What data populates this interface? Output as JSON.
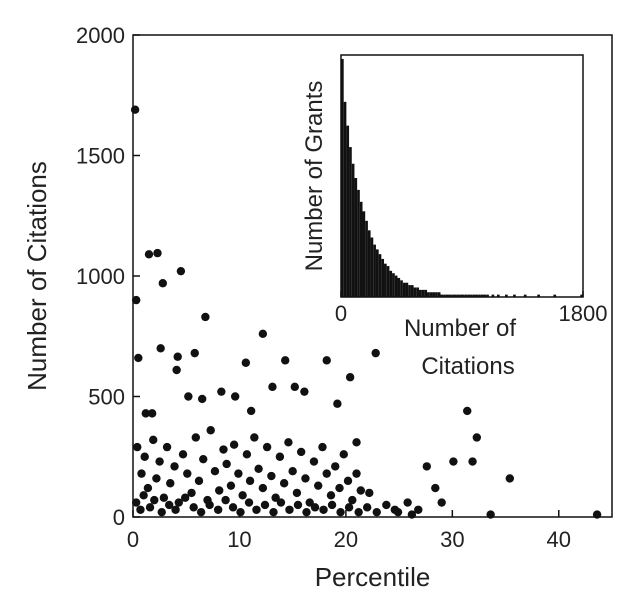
{
  "chart_data": [
    {
      "type": "scatter",
      "xlabel": "Percentile",
      "ylabel": "Number of Citations",
      "xlim": [
        0,
        45
      ],
      "ylim": [
        0,
        2000
      ],
      "x_ticks": [
        {
          "value": 0,
          "label": "0"
        },
        {
          "value": 10,
          "label": "10"
        },
        {
          "value": 20,
          "label": "20"
        },
        {
          "value": 30,
          "label": "30"
        },
        {
          "value": 40,
          "label": "40"
        }
      ],
      "y_ticks": [
        {
          "value": 0,
          "label": "0"
        },
        {
          "value": 500,
          "label": "500"
        },
        {
          "value": 1000,
          "label": "1000"
        },
        {
          "value": 1500,
          "label": "1500"
        },
        {
          "value": 2000,
          "label": "2000"
        }
      ],
      "grid": false,
      "marker_color": "#111111",
      "points": [
        {
          "x": 0.2,
          "y": 1690
        },
        {
          "x": 0.3,
          "y": 900
        },
        {
          "x": 0.5,
          "y": 660
        },
        {
          "x": 1.5,
          "y": 1090
        },
        {
          "x": 2.3,
          "y": 1095
        },
        {
          "x": 2.8,
          "y": 970
        },
        {
          "x": 4.5,
          "y": 1020
        },
        {
          "x": 2.6,
          "y": 700
        },
        {
          "x": 4.2,
          "y": 665
        },
        {
          "x": 5.8,
          "y": 680
        },
        {
          "x": 6.8,
          "y": 830
        },
        {
          "x": 12.2,
          "y": 760
        },
        {
          "x": 10.6,
          "y": 640
        },
        {
          "x": 14.3,
          "y": 650
        },
        {
          "x": 18.2,
          "y": 650
        },
        {
          "x": 20.4,
          "y": 580
        },
        {
          "x": 22.8,
          "y": 680
        },
        {
          "x": 1.2,
          "y": 430
        },
        {
          "x": 1.8,
          "y": 430
        },
        {
          "x": 4.1,
          "y": 610
        },
        {
          "x": 5.2,
          "y": 500
        },
        {
          "x": 6.5,
          "y": 490
        },
        {
          "x": 8.3,
          "y": 520
        },
        {
          "x": 9.6,
          "y": 500
        },
        {
          "x": 11.1,
          "y": 440
        },
        {
          "x": 13.1,
          "y": 540
        },
        {
          "x": 15.2,
          "y": 540
        },
        {
          "x": 16.1,
          "y": 520
        },
        {
          "x": 19.2,
          "y": 470
        },
        {
          "x": 31.4,
          "y": 440
        },
        {
          "x": 32.3,
          "y": 330
        },
        {
          "x": 31.9,
          "y": 230
        },
        {
          "x": 35.4,
          "y": 160
        },
        {
          "x": 30.1,
          "y": 230
        },
        {
          "x": 27.6,
          "y": 210
        },
        {
          "x": 28.4,
          "y": 120
        },
        {
          "x": 29.0,
          "y": 60
        },
        {
          "x": 25.8,
          "y": 60
        },
        {
          "x": 43.6,
          "y": 10
        },
        {
          "x": 26.2,
          "y": 10
        },
        {
          "x": 33.6,
          "y": 10
        },
        {
          "x": 24.6,
          "y": 30
        },
        {
          "x": 22.2,
          "y": 100
        },
        {
          "x": 21.0,
          "y": 310
        },
        {
          "x": 0.4,
          "y": 290
        },
        {
          "x": 0.8,
          "y": 180
        },
        {
          "x": 1.1,
          "y": 250
        },
        {
          "x": 1.4,
          "y": 120
        },
        {
          "x": 1.9,
          "y": 320
        },
        {
          "x": 2.2,
          "y": 160
        },
        {
          "x": 2.5,
          "y": 230
        },
        {
          "x": 2.9,
          "y": 80
        },
        {
          "x": 3.2,
          "y": 290
        },
        {
          "x": 3.5,
          "y": 140
        },
        {
          "x": 3.9,
          "y": 210
        },
        {
          "x": 4.3,
          "y": 60
        },
        {
          "x": 4.7,
          "y": 260
        },
        {
          "x": 5.1,
          "y": 180
        },
        {
          "x": 5.5,
          "y": 100
        },
        {
          "x": 5.9,
          "y": 330
        },
        {
          "x": 6.2,
          "y": 150
        },
        {
          "x": 6.6,
          "y": 240
        },
        {
          "x": 7.0,
          "y": 70
        },
        {
          "x": 7.3,
          "y": 360
        },
        {
          "x": 7.7,
          "y": 190
        },
        {
          "x": 8.1,
          "y": 110
        },
        {
          "x": 8.5,
          "y": 280
        },
        {
          "x": 8.8,
          "y": 220
        },
        {
          "x": 9.2,
          "y": 130
        },
        {
          "x": 9.5,
          "y": 300
        },
        {
          "x": 9.9,
          "y": 180
        },
        {
          "x": 10.3,
          "y": 90
        },
        {
          "x": 10.7,
          "y": 260
        },
        {
          "x": 11.0,
          "y": 150
        },
        {
          "x": 11.4,
          "y": 330
        },
        {
          "x": 11.8,
          "y": 200
        },
        {
          "x": 12.2,
          "y": 120
        },
        {
          "x": 12.6,
          "y": 290
        },
        {
          "x": 13.0,
          "y": 170
        },
        {
          "x": 13.4,
          "y": 80
        },
        {
          "x": 13.8,
          "y": 250
        },
        {
          "x": 14.2,
          "y": 140
        },
        {
          "x": 14.6,
          "y": 310
        },
        {
          "x": 15.0,
          "y": 190
        },
        {
          "x": 15.4,
          "y": 100
        },
        {
          "x": 15.8,
          "y": 270
        },
        {
          "x": 16.2,
          "y": 160
        },
        {
          "x": 16.6,
          "y": 60
        },
        {
          "x": 17.0,
          "y": 230
        },
        {
          "x": 17.4,
          "y": 130
        },
        {
          "x": 17.8,
          "y": 290
        },
        {
          "x": 18.2,
          "y": 180
        },
        {
          "x": 18.6,
          "y": 90
        },
        {
          "x": 19.0,
          "y": 210
        },
        {
          "x": 19.4,
          "y": 120
        },
        {
          "x": 19.8,
          "y": 260
        },
        {
          "x": 20.2,
          "y": 150
        },
        {
          "x": 20.6,
          "y": 70
        },
        {
          "x": 21.0,
          "y": 180
        },
        {
          "x": 21.4,
          "y": 110
        },
        {
          "x": 0.3,
          "y": 60
        },
        {
          "x": 0.7,
          "y": 30
        },
        {
          "x": 1.0,
          "y": 90
        },
        {
          "x": 1.6,
          "y": 40
        },
        {
          "x": 2.0,
          "y": 70
        },
        {
          "x": 2.7,
          "y": 20
        },
        {
          "x": 3.4,
          "y": 50
        },
        {
          "x": 4.0,
          "y": 30
        },
        {
          "x": 4.9,
          "y": 80
        },
        {
          "x": 5.7,
          "y": 40
        },
        {
          "x": 6.4,
          "y": 20
        },
        {
          "x": 7.2,
          "y": 50
        },
        {
          "x": 8.0,
          "y": 30
        },
        {
          "x": 8.7,
          "y": 70
        },
        {
          "x": 9.4,
          "y": 40
        },
        {
          "x": 10.1,
          "y": 20
        },
        {
          "x": 10.9,
          "y": 60
        },
        {
          "x": 11.6,
          "y": 30
        },
        {
          "x": 12.4,
          "y": 50
        },
        {
          "x": 13.2,
          "y": 20
        },
        {
          "x": 13.9,
          "y": 60
        },
        {
          "x": 14.7,
          "y": 30
        },
        {
          "x": 15.5,
          "y": 50
        },
        {
          "x": 16.3,
          "y": 20
        },
        {
          "x": 17.1,
          "y": 40
        },
        {
          "x": 17.9,
          "y": 30
        },
        {
          "x": 18.7,
          "y": 50
        },
        {
          "x": 19.5,
          "y": 20
        },
        {
          "x": 20.3,
          "y": 40
        },
        {
          "x": 21.2,
          "y": 20
        },
        {
          "x": 22.0,
          "y": 40
        },
        {
          "x": 22.9,
          "y": 20
        },
        {
          "x": 23.8,
          "y": 50
        },
        {
          "x": 24.9,
          "y": 20
        },
        {
          "x": 26.8,
          "y": 30
        }
      ]
    },
    {
      "type": "bar",
      "role": "inset histogram",
      "xlabel": "Number of Citations",
      "ylabel": "Number of Grants",
      "xlim": [
        0,
        1800
      ],
      "x_ticks": [
        {
          "value": 0,
          "label": "0"
        },
        {
          "value": 1800,
          "label": "1800"
        }
      ],
      "bin_width": 20,
      "bar_color": "#111111",
      "values": [
        100,
        82,
        72,
        63,
        56,
        50,
        45,
        40,
        36,
        32,
        28,
        25,
        22,
        20,
        18,
        16,
        14,
        13,
        11,
        10,
        9,
        8,
        7,
        6,
        6,
        5,
        5,
        4,
        4,
        3,
        3,
        3,
        2,
        2,
        2,
        2,
        2,
        1,
        1,
        1,
        1,
        1,
        1,
        1,
        1,
        1,
        1,
        1,
        1,
        1,
        1,
        1,
        1,
        1,
        1,
        0,
        1,
        0,
        1,
        0,
        0,
        1,
        0,
        0,
        1,
        0,
        0,
        0,
        1,
        0,
        0,
        0,
        0,
        1,
        0,
        0,
        0,
        0,
        0,
        1,
        0,
        0,
        0,
        0,
        0,
        0,
        0,
        0,
        0,
        1
      ]
    }
  ]
}
